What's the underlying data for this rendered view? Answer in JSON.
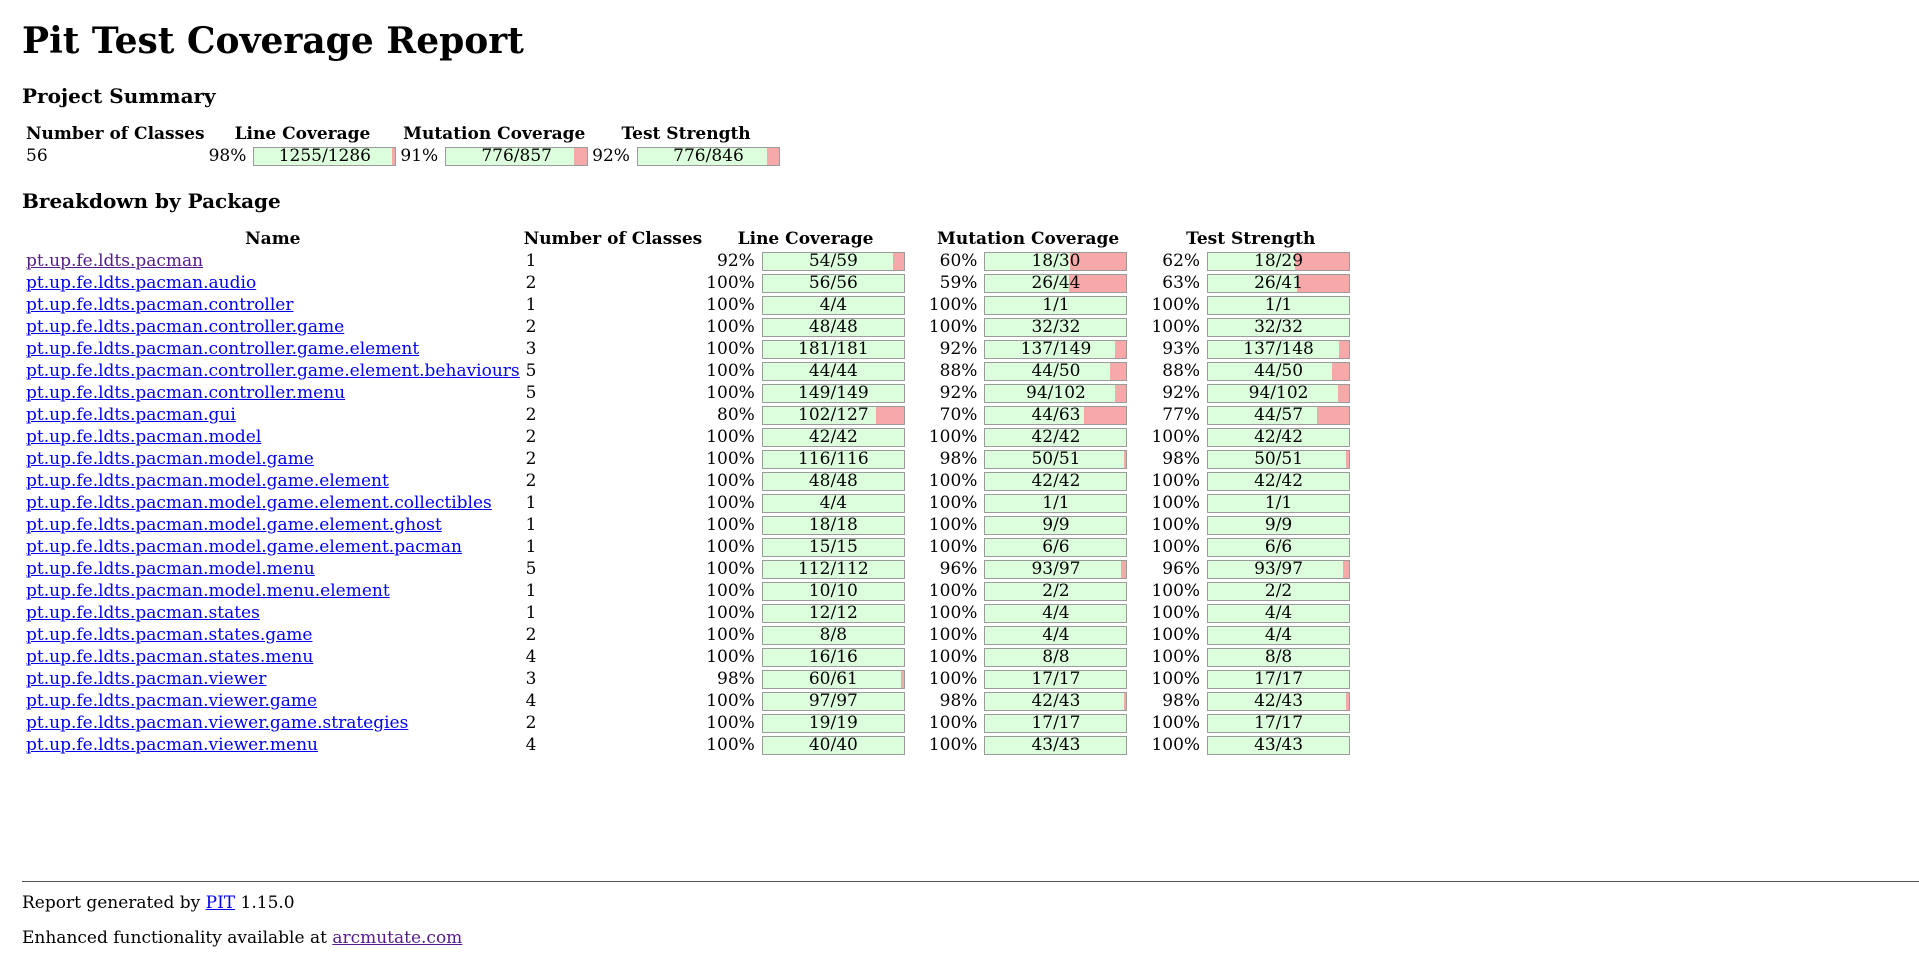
{
  "title": "Pit Test Coverage Report",
  "project_summary": {
    "heading": "Project Summary",
    "headers": {
      "classes": "Number of Classes",
      "line": "Line Coverage",
      "mutation": "Mutation Coverage",
      "strength": "Test Strength"
    },
    "classes": "56",
    "line": {
      "pct": "98%",
      "label": "1255/1286",
      "ratio": 0.976
    },
    "mutation": {
      "pct": "91%",
      "label": "776/857",
      "ratio": 0.905
    },
    "strength": {
      "pct": "92%",
      "label": "776/846",
      "ratio": 0.917
    }
  },
  "breakdown": {
    "heading": "Breakdown by Package",
    "headers": {
      "name": "Name",
      "classes": "Number of Classes",
      "line": "Line Coverage",
      "mutation": "Mutation Coverage",
      "strength": "Test Strength"
    },
    "rows": [
      {
        "name": "pt.up.fe.ldts.pacman",
        "visited": true,
        "classes": "1",
        "line": {
          "pct": "92%",
          "label": "54/59",
          "ratio": 0.92
        },
        "mutation": {
          "pct": "60%",
          "label": "18/30",
          "ratio": 0.6
        },
        "strength": {
          "pct": "62%",
          "label": "18/29",
          "ratio": 0.62
        }
      },
      {
        "name": "pt.up.fe.ldts.pacman.audio",
        "classes": "2",
        "line": {
          "pct": "100%",
          "label": "56/56",
          "ratio": 1
        },
        "mutation": {
          "pct": "59%",
          "label": "26/44",
          "ratio": 0.59
        },
        "strength": {
          "pct": "63%",
          "label": "26/41",
          "ratio": 0.63
        }
      },
      {
        "name": "pt.up.fe.ldts.pacman.controller",
        "classes": "1",
        "line": {
          "pct": "100%",
          "label": "4/4",
          "ratio": 1
        },
        "mutation": {
          "pct": "100%",
          "label": "1/1",
          "ratio": 1
        },
        "strength": {
          "pct": "100%",
          "label": "1/1",
          "ratio": 1
        }
      },
      {
        "name": "pt.up.fe.ldts.pacman.controller.game",
        "classes": "2",
        "line": {
          "pct": "100%",
          "label": "48/48",
          "ratio": 1
        },
        "mutation": {
          "pct": "100%",
          "label": "32/32",
          "ratio": 1
        },
        "strength": {
          "pct": "100%",
          "label": "32/32",
          "ratio": 1
        }
      },
      {
        "name": "pt.up.fe.ldts.pacman.controller.game.element",
        "classes": "3",
        "line": {
          "pct": "100%",
          "label": "181/181",
          "ratio": 1
        },
        "mutation": {
          "pct": "92%",
          "label": "137/149",
          "ratio": 0.92
        },
        "strength": {
          "pct": "93%",
          "label": "137/148",
          "ratio": 0.93
        }
      },
      {
        "name": "pt.up.fe.ldts.pacman.controller.game.element.behaviours",
        "classes": "5",
        "line": {
          "pct": "100%",
          "label": "44/44",
          "ratio": 1
        },
        "mutation": {
          "pct": "88%",
          "label": "44/50",
          "ratio": 0.88
        },
        "strength": {
          "pct": "88%",
          "label": "44/50",
          "ratio": 0.88
        }
      },
      {
        "name": "pt.up.fe.ldts.pacman.controller.menu",
        "classes": "5",
        "line": {
          "pct": "100%",
          "label": "149/149",
          "ratio": 1
        },
        "mutation": {
          "pct": "92%",
          "label": "94/102",
          "ratio": 0.92
        },
        "strength": {
          "pct": "92%",
          "label": "94/102",
          "ratio": 0.92
        }
      },
      {
        "name": "pt.up.fe.ldts.pacman.gui",
        "classes": "2",
        "line": {
          "pct": "80%",
          "label": "102/127",
          "ratio": 0.8
        },
        "mutation": {
          "pct": "70%",
          "label": "44/63",
          "ratio": 0.7
        },
        "strength": {
          "pct": "77%",
          "label": "44/57",
          "ratio": 0.77
        }
      },
      {
        "name": "pt.up.fe.ldts.pacman.model",
        "classes": "2",
        "line": {
          "pct": "100%",
          "label": "42/42",
          "ratio": 1
        },
        "mutation": {
          "pct": "100%",
          "label": "42/42",
          "ratio": 1
        },
        "strength": {
          "pct": "100%",
          "label": "42/42",
          "ratio": 1
        }
      },
      {
        "name": "pt.up.fe.ldts.pacman.model.game",
        "classes": "2",
        "line": {
          "pct": "100%",
          "label": "116/116",
          "ratio": 1
        },
        "mutation": {
          "pct": "98%",
          "label": "50/51",
          "ratio": 0.98
        },
        "strength": {
          "pct": "98%",
          "label": "50/51",
          "ratio": 0.98
        }
      },
      {
        "name": "pt.up.fe.ldts.pacman.model.game.element",
        "classes": "2",
        "line": {
          "pct": "100%",
          "label": "48/48",
          "ratio": 1
        },
        "mutation": {
          "pct": "100%",
          "label": "42/42",
          "ratio": 1
        },
        "strength": {
          "pct": "100%",
          "label": "42/42",
          "ratio": 1
        }
      },
      {
        "name": "pt.up.fe.ldts.pacman.model.game.element.collectibles",
        "classes": "1",
        "line": {
          "pct": "100%",
          "label": "4/4",
          "ratio": 1
        },
        "mutation": {
          "pct": "100%",
          "label": "1/1",
          "ratio": 1
        },
        "strength": {
          "pct": "100%",
          "label": "1/1",
          "ratio": 1
        }
      },
      {
        "name": "pt.up.fe.ldts.pacman.model.game.element.ghost",
        "classes": "1",
        "line": {
          "pct": "100%",
          "label": "18/18",
          "ratio": 1
        },
        "mutation": {
          "pct": "100%",
          "label": "9/9",
          "ratio": 1
        },
        "strength": {
          "pct": "100%",
          "label": "9/9",
          "ratio": 1
        }
      },
      {
        "name": "pt.up.fe.ldts.pacman.model.game.element.pacman",
        "classes": "1",
        "line": {
          "pct": "100%",
          "label": "15/15",
          "ratio": 1
        },
        "mutation": {
          "pct": "100%",
          "label": "6/6",
          "ratio": 1
        },
        "strength": {
          "pct": "100%",
          "label": "6/6",
          "ratio": 1
        }
      },
      {
        "name": "pt.up.fe.ldts.pacman.model.menu",
        "classes": "5",
        "line": {
          "pct": "100%",
          "label": "112/112",
          "ratio": 1
        },
        "mutation": {
          "pct": "96%",
          "label": "93/97",
          "ratio": 0.96
        },
        "strength": {
          "pct": "96%",
          "label": "93/97",
          "ratio": 0.96
        }
      },
      {
        "name": "pt.up.fe.ldts.pacman.model.menu.element",
        "classes": "1",
        "line": {
          "pct": "100%",
          "label": "10/10",
          "ratio": 1
        },
        "mutation": {
          "pct": "100%",
          "label": "2/2",
          "ratio": 1
        },
        "strength": {
          "pct": "100%",
          "label": "2/2",
          "ratio": 1
        }
      },
      {
        "name": "pt.up.fe.ldts.pacman.states",
        "classes": "1",
        "line": {
          "pct": "100%",
          "label": "12/12",
          "ratio": 1
        },
        "mutation": {
          "pct": "100%",
          "label": "4/4",
          "ratio": 1
        },
        "strength": {
          "pct": "100%",
          "label": "4/4",
          "ratio": 1
        }
      },
      {
        "name": "pt.up.fe.ldts.pacman.states.game",
        "classes": "2",
        "line": {
          "pct": "100%",
          "label": "8/8",
          "ratio": 1
        },
        "mutation": {
          "pct": "100%",
          "label": "4/4",
          "ratio": 1
        },
        "strength": {
          "pct": "100%",
          "label": "4/4",
          "ratio": 1
        }
      },
      {
        "name": "pt.up.fe.ldts.pacman.states.menu",
        "classes": "4",
        "line": {
          "pct": "100%",
          "label": "16/16",
          "ratio": 1
        },
        "mutation": {
          "pct": "100%",
          "label": "8/8",
          "ratio": 1
        },
        "strength": {
          "pct": "100%",
          "label": "8/8",
          "ratio": 1
        }
      },
      {
        "name": "pt.up.fe.ldts.pacman.viewer",
        "classes": "3",
        "line": {
          "pct": "98%",
          "label": "60/61",
          "ratio": 0.98
        },
        "mutation": {
          "pct": "100%",
          "label": "17/17",
          "ratio": 1
        },
        "strength": {
          "pct": "100%",
          "label": "17/17",
          "ratio": 1
        }
      },
      {
        "name": "pt.up.fe.ldts.pacman.viewer.game",
        "classes": "4",
        "line": {
          "pct": "100%",
          "label": "97/97",
          "ratio": 1
        },
        "mutation": {
          "pct": "98%",
          "label": "42/43",
          "ratio": 0.98
        },
        "strength": {
          "pct": "98%",
          "label": "42/43",
          "ratio": 0.98
        }
      },
      {
        "name": "pt.up.fe.ldts.pacman.viewer.game.strategies",
        "classes": "2",
        "line": {
          "pct": "100%",
          "label": "19/19",
          "ratio": 1
        },
        "mutation": {
          "pct": "100%",
          "label": "17/17",
          "ratio": 1
        },
        "strength": {
          "pct": "100%",
          "label": "17/17",
          "ratio": 1
        }
      },
      {
        "name": "pt.up.fe.ldts.pacman.viewer.menu",
        "classes": "4",
        "line": {
          "pct": "100%",
          "label": "40/40",
          "ratio": 1
        },
        "mutation": {
          "pct": "100%",
          "label": "43/43",
          "ratio": 1
        },
        "strength": {
          "pct": "100%",
          "label": "43/43",
          "ratio": 1
        }
      }
    ]
  },
  "footer": {
    "generated_prefix": "Report generated by",
    "pit_link": "PIT",
    "pit_version": "1.15.0",
    "enhanced_prefix": "Enhanced functionality available at",
    "arcmutate_link": "arcmutate.com"
  },
  "colors": {
    "covered": "#ddfedd",
    "missed": "#f7a8a8",
    "bar_border": "#9b9b9b",
    "link": "#0000ee",
    "link_visited": "#551a8b"
  }
}
